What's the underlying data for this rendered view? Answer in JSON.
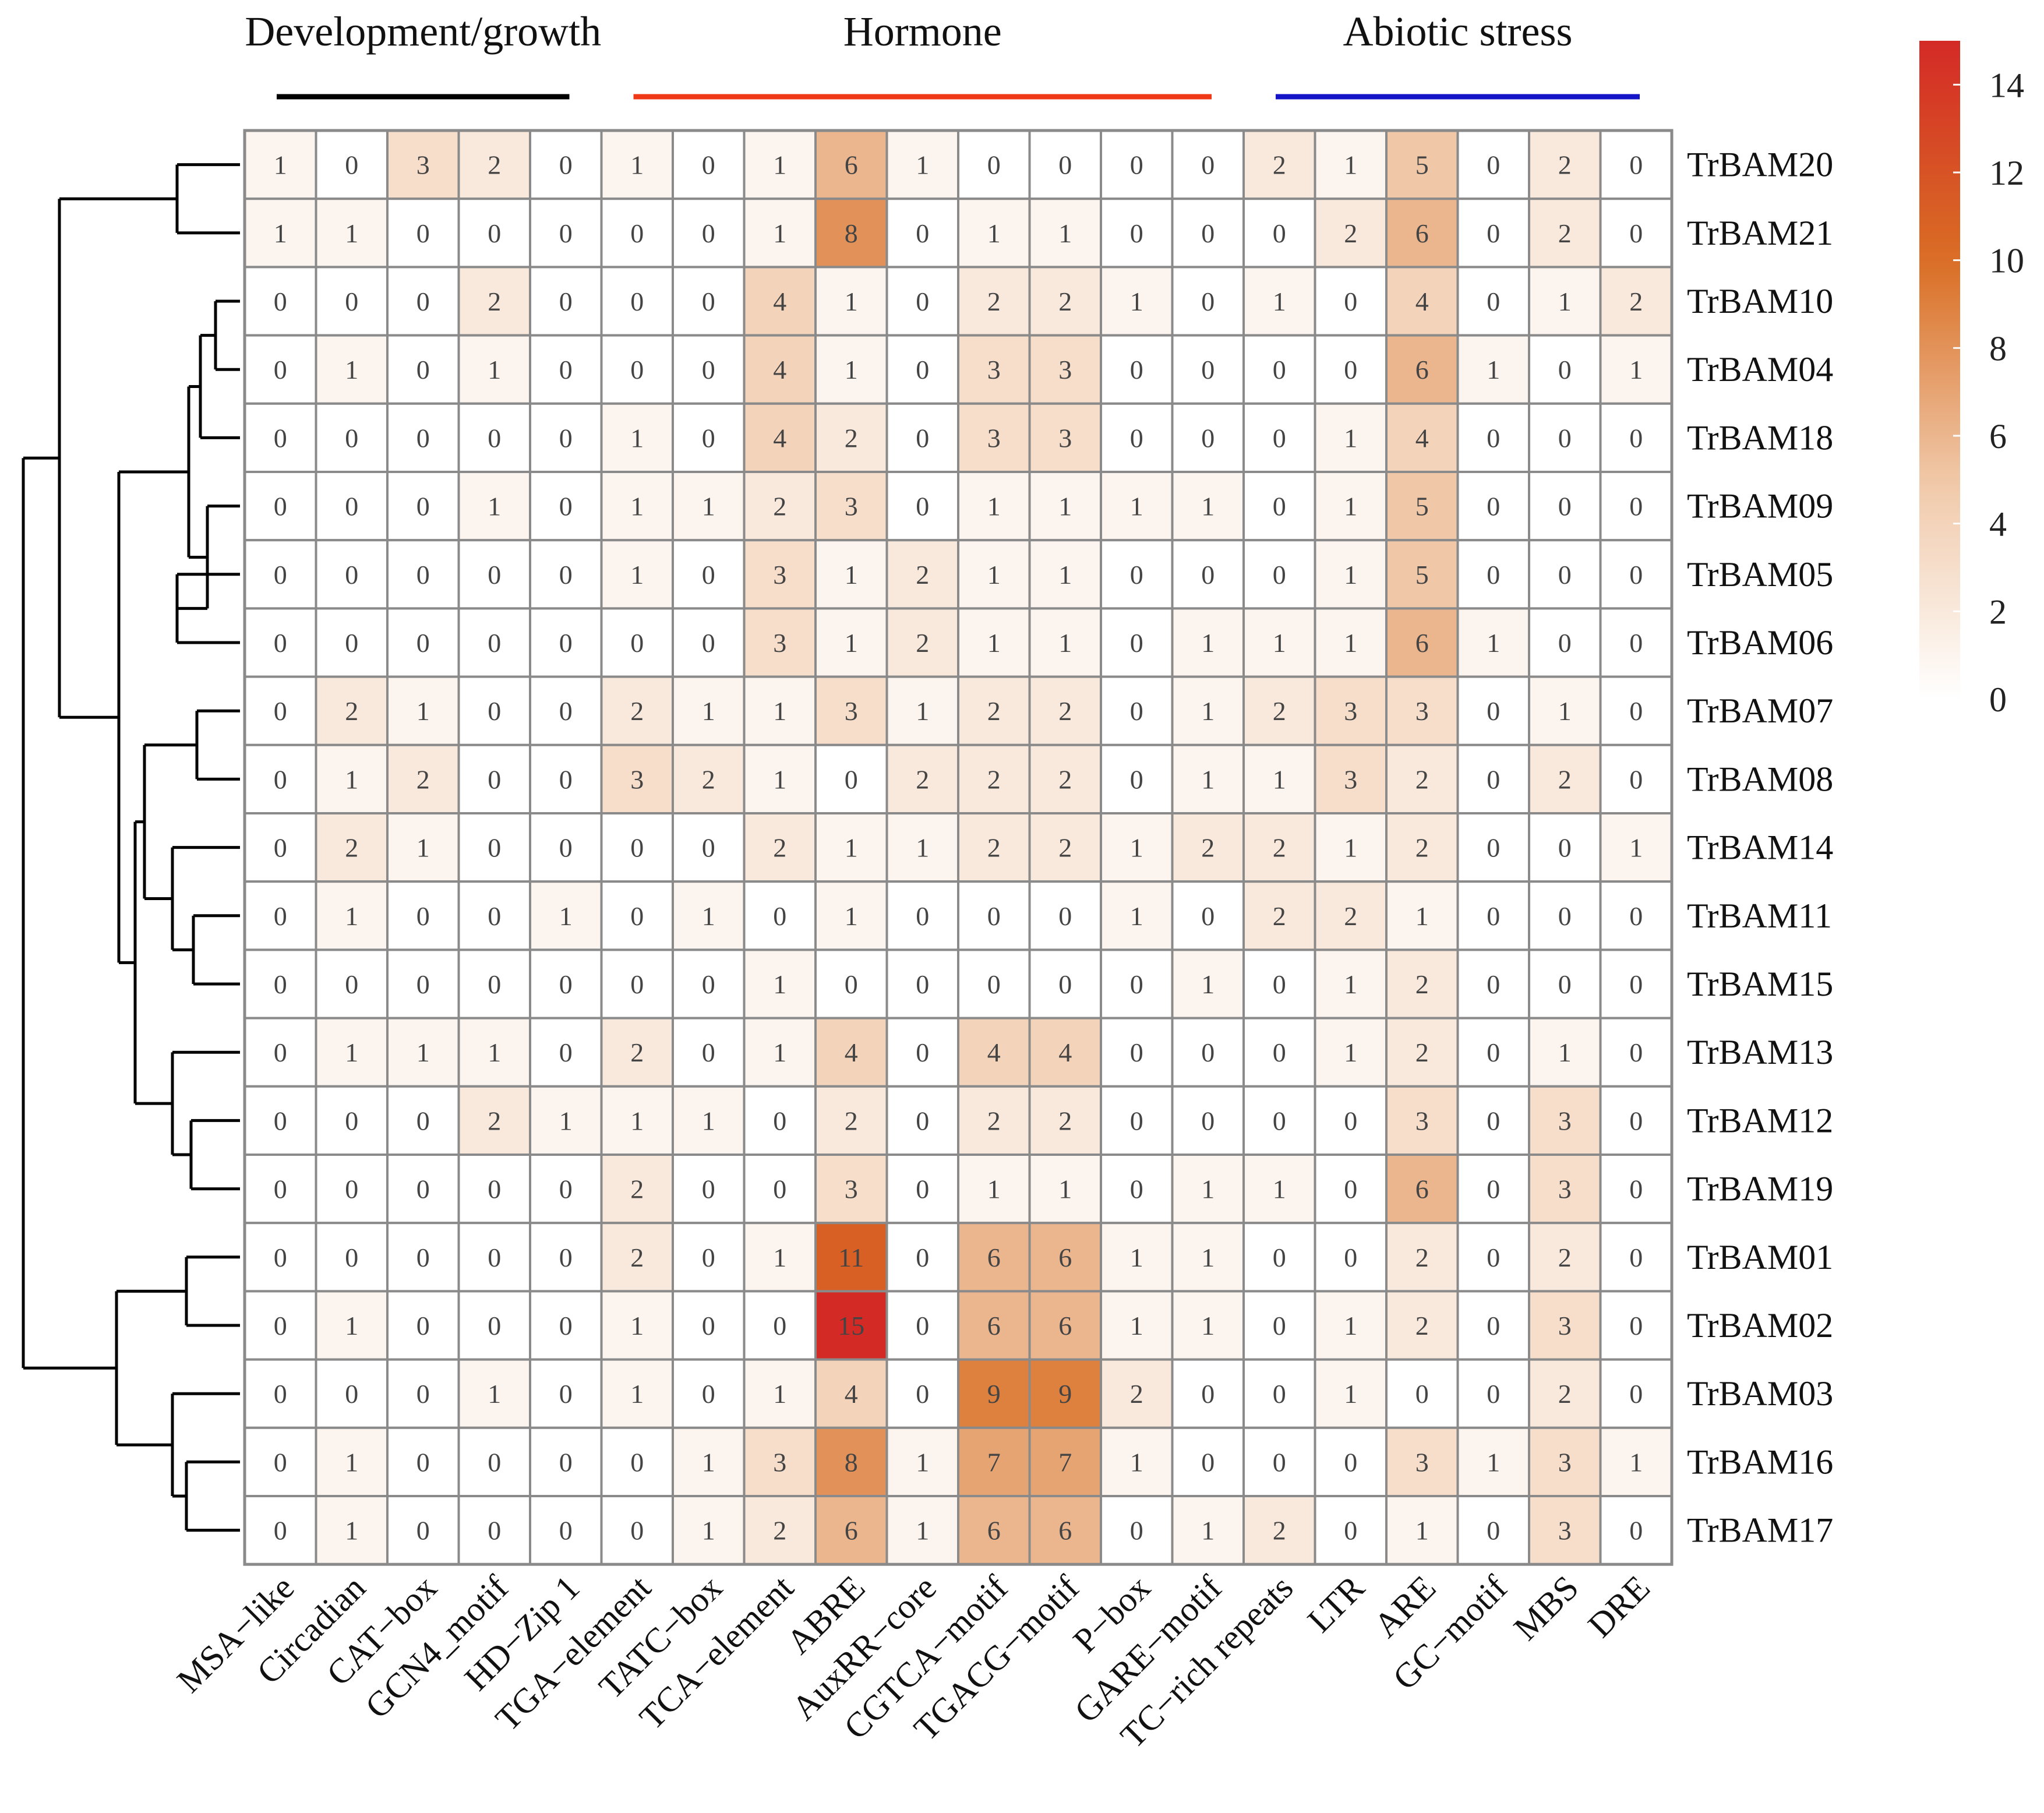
{
  "chart_data": {
    "type": "heatmap",
    "title": "",
    "groups": [
      {
        "name": "Development/growth",
        "color": "#000000",
        "columns": [
          "MSA−like",
          "Circadian",
          "CAT−box",
          "GCN4_motif",
          "HD−Zip 1"
        ]
      },
      {
        "name": "Hormone",
        "color": "#f03a17",
        "columns": [
          "TGA−element",
          "TATC−box",
          "TCA−element",
          "ABRE",
          "AuxRR−core",
          "CGTCA−motif",
          "TGACG−motif",
          "P−box",
          "GARE−motif"
        ]
      },
      {
        "name": "Abiotic stress",
        "color": "#1515c8",
        "columns": [
          "TC−rich repeats",
          "LTR",
          "ARE",
          "GC−motif",
          "MBS",
          "DRE"
        ]
      }
    ],
    "columns": [
      "MSA−like",
      "Circadian",
      "CAT−box",
      "GCN4_motif",
      "HD−Zip 1",
      "TGA−element",
      "TATC−box",
      "TCA−element",
      "ABRE",
      "AuxRR−core",
      "CGTCA−motif",
      "TGACG−motif",
      "P−box",
      "GARE−motif",
      "TC−rich repeats",
      "LTR",
      "ARE",
      "GC−motif",
      "MBS",
      "DRE"
    ],
    "rows": [
      "TrBAM20",
      "TrBAM21",
      "TrBAM10",
      "TrBAM04",
      "TrBAM18",
      "TrBAM09",
      "TrBAM05",
      "TrBAM06",
      "TrBAM07",
      "TrBAM08",
      "TrBAM14",
      "TrBAM11",
      "TrBAM15",
      "TrBAM13",
      "TrBAM12",
      "TrBAM19",
      "TrBAM01",
      "TrBAM02",
      "TrBAM03",
      "TrBAM16",
      "TrBAM17"
    ],
    "values": [
      [
        1,
        0,
        3,
        2,
        0,
        1,
        0,
        1,
        6,
        1,
        0,
        0,
        0,
        0,
        2,
        1,
        5,
        0,
        2,
        0
      ],
      [
        1,
        1,
        0,
        0,
        0,
        0,
        0,
        1,
        8,
        0,
        1,
        1,
        0,
        0,
        0,
        2,
        6,
        0,
        2,
        0
      ],
      [
        0,
        0,
        0,
        2,
        0,
        0,
        0,
        4,
        1,
        0,
        2,
        2,
        1,
        0,
        1,
        0,
        4,
        0,
        1,
        2
      ],
      [
        0,
        1,
        0,
        1,
        0,
        0,
        0,
        4,
        1,
        0,
        3,
        3,
        0,
        0,
        0,
        0,
        6,
        1,
        0,
        1
      ],
      [
        0,
        0,
        0,
        0,
        0,
        1,
        0,
        4,
        2,
        0,
        3,
        3,
        0,
        0,
        0,
        1,
        4,
        0,
        0,
        0
      ],
      [
        0,
        0,
        0,
        1,
        0,
        1,
        1,
        2,
        3,
        0,
        1,
        1,
        1,
        1,
        0,
        1,
        5,
        0,
        0,
        0
      ],
      [
        0,
        0,
        0,
        0,
        0,
        1,
        0,
        3,
        1,
        2,
        1,
        1,
        0,
        0,
        0,
        1,
        5,
        0,
        0,
        0
      ],
      [
        0,
        0,
        0,
        0,
        0,
        0,
        0,
        3,
        1,
        2,
        1,
        1,
        0,
        1,
        1,
        1,
        6,
        1,
        0,
        0
      ],
      [
        0,
        2,
        1,
        0,
        0,
        2,
        1,
        1,
        3,
        1,
        2,
        2,
        0,
        1,
        2,
        3,
        3,
        0,
        1,
        0
      ],
      [
        0,
        1,
        2,
        0,
        0,
        3,
        2,
        1,
        0,
        2,
        2,
        2,
        0,
        1,
        1,
        3,
        2,
        0,
        2,
        0
      ],
      [
        0,
        2,
        1,
        0,
        0,
        0,
        0,
        2,
        1,
        1,
        2,
        2,
        1,
        2,
        2,
        1,
        2,
        0,
        0,
        1
      ],
      [
        0,
        1,
        0,
        0,
        1,
        0,
        1,
        0,
        1,
        0,
        0,
        0,
        1,
        0,
        2,
        2,
        1,
        0,
        0,
        0
      ],
      [
        0,
        0,
        0,
        0,
        0,
        0,
        0,
        1,
        0,
        0,
        0,
        0,
        0,
        1,
        0,
        1,
        2,
        0,
        0,
        0
      ],
      [
        0,
        1,
        1,
        1,
        0,
        2,
        0,
        1,
        4,
        0,
        4,
        4,
        0,
        0,
        0,
        1,
        2,
        0,
        1,
        0
      ],
      [
        0,
        0,
        0,
        2,
        1,
        1,
        1,
        0,
        2,
        0,
        2,
        2,
        0,
        0,
        0,
        0,
        3,
        0,
        3,
        0
      ],
      [
        0,
        0,
        0,
        0,
        0,
        2,
        0,
        0,
        3,
        0,
        1,
        1,
        0,
        1,
        1,
        0,
        6,
        0,
        3,
        0
      ],
      [
        0,
        0,
        0,
        0,
        0,
        2,
        0,
        1,
        11,
        0,
        6,
        6,
        1,
        1,
        0,
        0,
        2,
        0,
        2,
        0
      ],
      [
        0,
        1,
        0,
        0,
        0,
        1,
        0,
        0,
        15,
        0,
        6,
        6,
        1,
        1,
        0,
        1,
        2,
        0,
        3,
        0
      ],
      [
        0,
        0,
        0,
        1,
        0,
        1,
        0,
        1,
        4,
        0,
        9,
        9,
        2,
        0,
        0,
        1,
        0,
        0,
        2,
        0
      ],
      [
        0,
        1,
        0,
        0,
        0,
        0,
        1,
        3,
        8,
        1,
        7,
        7,
        1,
        0,
        0,
        0,
        3,
        1,
        3,
        1
      ],
      [
        0,
        1,
        0,
        0,
        0,
        0,
        1,
        2,
        6,
        1,
        6,
        6,
        0,
        1,
        2,
        0,
        1,
        0,
        3,
        0
      ]
    ],
    "color_scale": {
      "min": 0,
      "max": 15,
      "colors": [
        "#ffffff",
        "#f0c8a8",
        "#d96e24",
        "#d42a26"
      ]
    },
    "legend_ticks": [
      0,
      2,
      4,
      6,
      8,
      10,
      12,
      14
    ],
    "dendrogram": [
      [
        "TrBAM05",
        "TrBAM06"
      ],
      [
        "TrBAM10",
        "TrBAM04"
      ],
      [
        "TrBAM07",
        "TrBAM08"
      ],
      [
        "TrBAM11",
        "TrBAM15"
      ],
      [
        "TrBAM12",
        "TrBAM19"
      ],
      [
        "TrBAM01",
        "TrBAM02"
      ],
      [
        "TrBAM16",
        "TrBAM17"
      ],
      [
        "TrBAM20",
        "TrBAM21"
      ],
      [
        "TrBAM09",
        "TrBAM05"
      ],
      [
        "TrBAM10",
        "TrBAM18"
      ],
      [
        "TrBAM14",
        "TrBAM11"
      ],
      [
        "TrBAM13",
        "TrBAM12"
      ],
      [
        "TrBAM03",
        "TrBAM16"
      ],
      [
        "TrBAM10",
        "TrBAM09"
      ],
      [
        "TrBAM07",
        "TrBAM14"
      ],
      [
        "TrBAM07",
        "TrBAM13"
      ],
      [
        "TrBAM10",
        "TrBAM07"
      ],
      [
        "TrBAM01",
        "TrBAM03"
      ],
      [
        "TrBAM20",
        "TrBAM10"
      ],
      [
        "TrBAM20",
        "TrBAM01"
      ]
    ]
  }
}
